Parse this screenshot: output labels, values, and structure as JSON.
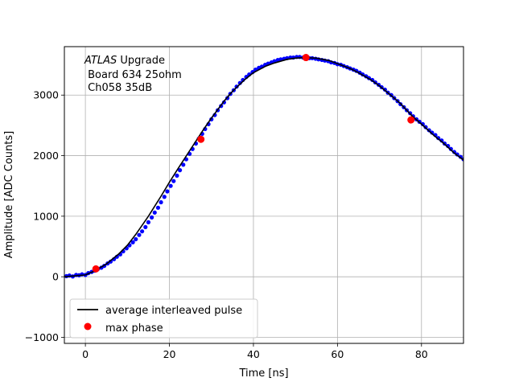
{
  "chart_data": {
    "type": "scatter",
    "title": "",
    "xlabel": "Time [ns]",
    "ylabel": "Amplitude [ADC Counts]",
    "xlim": [
      -5,
      90
    ],
    "ylim": [
      -1100,
      3800
    ],
    "xticks": [
      0,
      20,
      40,
      60,
      80
    ],
    "yticks": [
      -1000,
      0,
      1000,
      2000,
      3000
    ],
    "grid": true,
    "legend_position": "lower-left",
    "annotation": {
      "line1_italic": "ATLAS",
      "line1_rest": " Upgrade",
      "line2": " Board 634 25ohm",
      "line3": " Ch058 35dB"
    },
    "series": [
      {
        "name": "average interleaved pulse",
        "kind": "line",
        "color": "#000000",
        "x": [
          -5,
          0,
          2,
          5,
          8,
          10,
          12,
          15,
          18,
          20,
          22,
          25,
          28,
          30,
          33,
          35,
          38,
          40,
          43,
          45,
          48,
          50,
          52,
          55,
          58,
          60,
          63,
          65,
          68,
          70,
          73,
          75,
          78,
          80,
          83,
          85,
          88,
          90
        ],
        "y": [
          0,
          30,
          90,
          210,
          380,
          520,
          700,
          1000,
          1330,
          1560,
          1780,
          2100,
          2420,
          2620,
          2900,
          3060,
          3260,
          3370,
          3480,
          3530,
          3590,
          3610,
          3620,
          3610,
          3570,
          3520,
          3440,
          3370,
          3250,
          3150,
          2980,
          2860,
          2640,
          2520,
          2330,
          2220,
          2030,
          1930
        ]
      },
      {
        "name": "",
        "kind": "scatter",
        "color": "#0000ff",
        "x": [
          -4.5,
          -3.8,
          -3,
          -2.2,
          -1.5,
          -0.8,
          0,
          0.7,
          1.5,
          2.2,
          3,
          3.8,
          4.5,
          5.3,
          6,
          6.8,
          7.5,
          8.3,
          9,
          9.8,
          10.5,
          11.3,
          12,
          12.8,
          13.5,
          14.3,
          15,
          15.8,
          16.5,
          17.3,
          18,
          18.8,
          19.5,
          20.3,
          21,
          21.8,
          22.5,
          23.3,
          24,
          24.8,
          25.5,
          26.3,
          27,
          27.8,
          28.5,
          29.3,
          30,
          30.8,
          31.5,
          32.3,
          33,
          33.8,
          34.5,
          35.3,
          36,
          36.8,
          37.5,
          38.3,
          39,
          39.8,
          40.5,
          41.3,
          42,
          42.8,
          43.5,
          44.3,
          45,
          45.8,
          46.5,
          47.3,
          48,
          48.8,
          49.5,
          50.3,
          51,
          51.8,
          52.5,
          53.3,
          54,
          54.8,
          55.5,
          56.3,
          57,
          57.8,
          58.5,
          59.3,
          60,
          60.8,
          61.5,
          62.3,
          63,
          63.8,
          64.5,
          65.3,
          66,
          66.8,
          67.5,
          68.3,
          69,
          69.8,
          70.5,
          71.3,
          72,
          72.8,
          73.5,
          74.3,
          75,
          75.8,
          76.5,
          77.3,
          78,
          78.8,
          79.5,
          80.3,
          81,
          81.8,
          82.5,
          83.3,
          84,
          84.8,
          85.5,
          86.3,
          87,
          87.8,
          88.5,
          89.3,
          90
        ],
        "y": [
          10,
          20,
          5,
          30,
          25,
          40,
          30,
          60,
          80,
          100,
          130,
          150,
          180,
          220,
          250,
          290,
          330,
          370,
          420,
          470,
          520,
          570,
          620,
          690,
          750,
          820,
          900,
          980,
          1060,
          1140,
          1230,
          1320,
          1410,
          1500,
          1580,
          1670,
          1760,
          1850,
          1940,
          2030,
          2110,
          2200,
          2280,
          2360,
          2440,
          2520,
          2600,
          2670,
          2750,
          2820,
          2880,
          2950,
          3020,
          3080,
          3140,
          3200,
          3250,
          3300,
          3340,
          3380,
          3420,
          3450,
          3470,
          3500,
          3520,
          3540,
          3560,
          3580,
          3590,
          3600,
          3610,
          3620,
          3620,
          3630,
          3630,
          3620,
          3620,
          3610,
          3610,
          3600,
          3590,
          3580,
          3570,
          3560,
          3540,
          3530,
          3510,
          3500,
          3480,
          3460,
          3440,
          3420,
          3400,
          3370,
          3340,
          3310,
          3280,
          3250,
          3210,
          3170,
          3130,
          3090,
          3040,
          3000,
          2950,
          2900,
          2850,
          2800,
          2750,
          2700,
          2650,
          2600,
          2560,
          2520,
          2470,
          2420,
          2380,
          2340,
          2290,
          2250,
          2200,
          2160,
          2110,
          2060,
          2020,
          1980,
          1940
        ]
      },
      {
        "name": "max phase",
        "kind": "marker",
        "color": "#ff0000",
        "x": [
          2.5,
          27.5,
          52.5,
          77.5
        ],
        "y": [
          130,
          2270,
          3620,
          2590
        ]
      }
    ]
  }
}
